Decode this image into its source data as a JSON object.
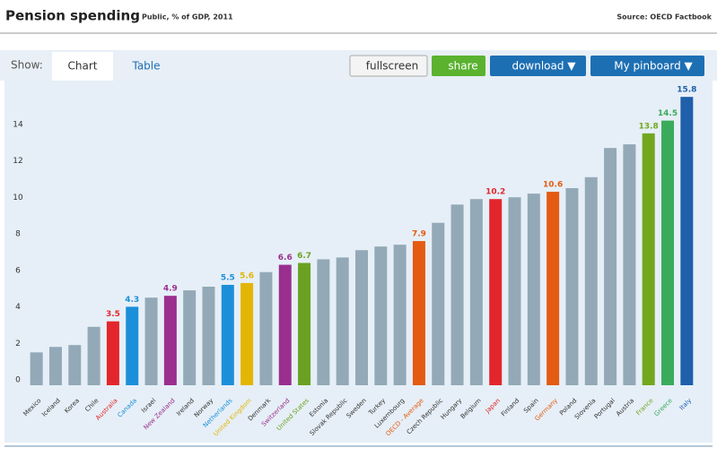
{
  "header": {
    "title": "Pension spending",
    "subtitle": "Public, % of GDP, 2011",
    "source": "Source: OECD Factbook"
  },
  "toolbar": {
    "show": "Show:",
    "tabs": [
      "Chart",
      "Table"
    ],
    "buttons": [
      "fullscreen",
      "share",
      "download ▼",
      "My pinboard ▼"
    ]
  },
  "chart_data": {
    "type": "bar",
    "categories": [
      "Mexico",
      "Iceland",
      "Korea",
      "Chile",
      "Australia",
      "Canada",
      "Israel",
      "New Zealand",
      "Ireland",
      "Norway",
      "Netherlands",
      "United Kingdom",
      "Denmark",
      "Switzerland",
      "United States",
      "Estonia",
      "Slovak Republic",
      "Sweden",
      "Turkey",
      "Luxembourg",
      "OECD - Average",
      "Czech Republic",
      "Hungary",
      "Belgium",
      "Japan",
      "Finland",
      "Spain",
      "Germany",
      "Poland",
      "Slovenia",
      "Portugal",
      "Austria",
      "France",
      "Greece",
      "Italy"
    ],
    "values": [
      1.8,
      2.1,
      2.2,
      3.2,
      3.5,
      4.3,
      4.8,
      4.9,
      5.2,
      5.4,
      5.5,
      5.6,
      6.2,
      6.6,
      6.7,
      6.9,
      7.0,
      7.4,
      7.6,
      7.7,
      7.9,
      8.9,
      9.9,
      10.2,
      10.2,
      10.3,
      10.5,
      10.6,
      10.8,
      11.4,
      13.0,
      13.2,
      13.8,
      14.5,
      15.8
    ],
    "base_color": "#93a9b7",
    "colors": [
      "#93a9b7",
      "#93a9b7",
      "#93a9b7",
      "#93a9b7",
      "#e3262c",
      "#1b8fda",
      "#93a9b7",
      "#9a2f8f",
      "#93a9b7",
      "#93a9b7",
      "#1b8fda",
      "#e3b504",
      "#93a9b7",
      "#9a2f8f",
      "#6ba123",
      "#93a9b7",
      "#93a9b7",
      "#93a9b7",
      "#93a9b7",
      "#93a9b7",
      "#e45b14",
      "#93a9b7",
      "#93a9b7",
      "#93a9b7",
      "#e3262c",
      "#93a9b7",
      "#93a9b7",
      "#e45b14",
      "#93a9b7",
      "#93a9b7",
      "#93a9b7",
      "#93a9b7",
      "#72a81e",
      "#3aab5b",
      "#1f5fab"
    ],
    "ylim": [
      0,
      16.2
    ],
    "yticks": [
      0,
      2,
      4,
      6,
      8,
      10,
      12,
      14
    ],
    "grid": false
  }
}
